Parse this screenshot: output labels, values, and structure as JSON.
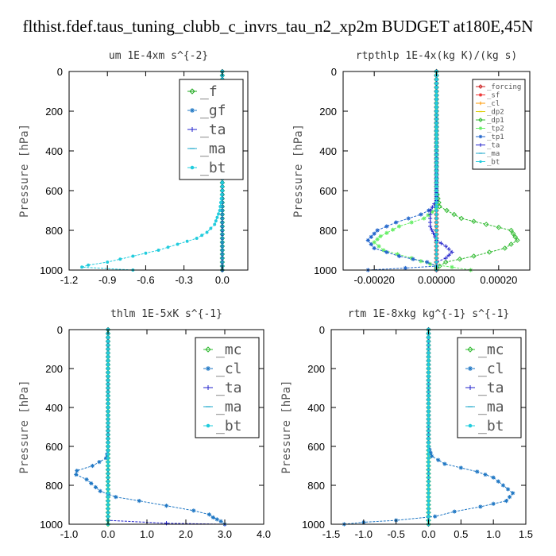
{
  "title": "flthist.fdef.taus_tuning_clubb_c_invrs_tau_n2_xp2m  BUDGET at180E,45N",
  "chart_data": [
    {
      "type": "line",
      "title": "um   1E-4xm s^{-2}",
      "ylabel": "Pressure [hPa]",
      "xlim": [
        -1.2,
        0.2
      ],
      "ylim": [
        1000,
        0
      ],
      "xticks": [
        -1.2,
        -0.9,
        -0.6,
        -0.3,
        0.0
      ],
      "xtick_labels": [
        "-1.2",
        "-0.9",
        "-0.6",
        "-0.3",
        "0.0"
      ],
      "yticks": [
        0,
        200,
        400,
        600,
        800,
        1000
      ],
      "legend_position": "top-right",
      "legend_large": true,
      "series": [
        {
          "name": "_f",
          "color": "#22aa22",
          "marker": "diamond",
          "points": [
            [
              0.0,
              0
            ],
            [
              0.0,
              1000
            ]
          ]
        },
        {
          "name": "_gf",
          "color": "#1f77c4",
          "marker": "star",
          "points": [
            [
              0.0,
              0
            ],
            [
              0.0,
              1000
            ]
          ]
        },
        {
          "name": "_ta",
          "color": "#2222cc",
          "marker": "plus",
          "points": [
            [
              0.0,
              0
            ],
            [
              0.0,
              1000
            ]
          ]
        },
        {
          "name": "_ma",
          "color": "#22aacc",
          "marker": "dash",
          "points": [
            [
              0.0,
              0
            ],
            [
              0.0,
              1000
            ]
          ]
        },
        {
          "name": "_bt",
          "color": "#22ccdd",
          "marker": "dot",
          "points": [
            [
              0.0,
              0
            ],
            [
              0.0,
              600
            ],
            [
              -0.02,
              700
            ],
            [
              -0.06,
              770
            ],
            [
              -0.12,
              810
            ],
            [
              -0.2,
              840
            ],
            [
              -0.35,
              870
            ],
            [
              -0.5,
              900
            ],
            [
              -0.7,
              930
            ],
            [
              -0.9,
              960
            ],
            [
              -1.05,
              975
            ],
            [
              -1.1,
              985
            ],
            [
              -0.7,
              1000
            ]
          ]
        }
      ]
    },
    {
      "type": "line",
      "title": "rtpthlp   1E-4x(kg K)/(kg s)",
      "ylabel": "Pressure [hPa]",
      "xlim": [
        -0.0003,
        0.0003
      ],
      "ylim": [
        1000,
        0
      ],
      "xticks": [
        -0.0002,
        0.0,
        0.0002
      ],
      "xtick_labels": [
        "-0.00020",
        "0.00000",
        "0.00020"
      ],
      "yticks": [
        0,
        200,
        400,
        600,
        800,
        1000
      ],
      "legend_position": "top-right",
      "legend_large": false,
      "series": [
        {
          "name": "_forcing",
          "color": "#cc2222",
          "marker": "diamond",
          "points": [
            [
              0.0,
              0
            ],
            [
              0.0,
              1000
            ]
          ]
        },
        {
          "name": "_sf",
          "color": "#ee3333",
          "marker": "star",
          "points": [
            [
              0.0,
              0
            ],
            [
              0.0,
              1000
            ]
          ]
        },
        {
          "name": "_cl",
          "color": "#ff9900",
          "marker": "plus",
          "points": [
            [
              0.0,
              0
            ],
            [
              0.0,
              1000
            ]
          ]
        },
        {
          "name": "_dp2",
          "color": "#ddcc00",
          "marker": "dash",
          "points": [
            [
              0.0,
              0
            ],
            [
              0.0,
              1000
            ]
          ]
        },
        {
          "name": "_dp1",
          "color": "#33bb33",
          "marker": "diamond",
          "points": [
            [
              0.0,
              0
            ],
            [
              0.0,
              600
            ],
            [
              1e-05,
              680
            ],
            [
              8e-05,
              740
            ],
            [
              0.00016,
              770
            ],
            [
              0.00024,
              800
            ],
            [
              0.00026,
              850
            ],
            [
              0.00022,
              890
            ],
            [
              0.00012,
              930
            ],
            [
              3e-05,
              960
            ],
            [
              1e-05,
              980
            ],
            [
              0.0,
              990
            ]
          ]
        },
        {
          "name": "_tp2",
          "color": "#66ee66",
          "marker": "star",
          "points": [
            [
              0.0,
              0
            ],
            [
              0.0,
              690
            ],
            [
              -4e-05,
              740
            ],
            [
              -0.00012,
              780
            ],
            [
              -0.00018,
              830
            ],
            [
              -0.0002,
              860
            ],
            [
              -0.00017,
              900
            ],
            [
              -8e-05,
              940
            ],
            [
              -2e-05,
              970
            ],
            [
              5e-05,
              985
            ],
            [
              0.00011,
              1000
            ]
          ]
        },
        {
          "name": "_tp1",
          "color": "#2266cc",
          "marker": "star",
          "points": [
            [
              0.0,
              0
            ],
            [
              0.0,
              680
            ],
            [
              -5e-05,
              720
            ],
            [
              -0.00013,
              760
            ],
            [
              -0.00019,
              800
            ],
            [
              -0.00022,
              850
            ],
            [
              -0.0002,
              890
            ],
            [
              -0.00012,
              930
            ],
            [
              -3e-05,
              960
            ],
            [
              0.0,
              980
            ],
            [
              -0.0001,
              990
            ],
            [
              -0.00022,
              1000
            ]
          ]
        },
        {
          "name": "_ta",
          "color": "#2222cc",
          "marker": "plus",
          "points": [
            [
              0.0,
              0
            ],
            [
              0.0,
              650
            ],
            [
              -2e-05,
              700
            ],
            [
              -2e-05,
              780
            ],
            [
              0.0,
              850
            ],
            [
              3e-05,
              880
            ],
            [
              5e-05,
              910
            ],
            [
              3e-05,
              940
            ],
            [
              0.0,
              960
            ],
            [
              0.0,
              1000
            ]
          ]
        },
        {
          "name": "_ma",
          "color": "#22aacc",
          "marker": "dash",
          "points": [
            [
              0.0,
              0
            ],
            [
              0.0,
              1000
            ]
          ]
        },
        {
          "name": "_bt",
          "color": "#22ccdd",
          "marker": "dot",
          "points": [
            [
              0.0,
              0
            ],
            [
              0.0,
              1000
            ]
          ]
        }
      ]
    },
    {
      "type": "line",
      "title": "thlm   1E-5xK s^{-1}",
      "ylabel": "Pressure [hPa]",
      "xlim": [
        -1.0,
        4.0
      ],
      "ylim": [
        1000,
        0
      ],
      "xticks": [
        -1.0,
        0.0,
        1.0,
        2.0,
        3.0,
        4.0
      ],
      "xtick_labels": [
        "-1.0",
        "0.0",
        "1.0",
        "2.0",
        "3.0",
        "4.0"
      ],
      "yticks": [
        0,
        200,
        400,
        600,
        800,
        1000
      ],
      "legend_position": "top-right",
      "legend_large": true,
      "series": [
        {
          "name": "_mc",
          "color": "#33bb33",
          "marker": "diamond",
          "points": [
            [
              0.0,
              0
            ],
            [
              0.0,
              1000
            ]
          ]
        },
        {
          "name": "_cl",
          "color": "#1f77c4",
          "marker": "star",
          "points": [
            [
              0.0,
              0
            ],
            [
              0.0,
              620
            ],
            [
              -0.05,
              660
            ],
            [
              -0.4,
              700
            ],
            [
              -0.8,
              725
            ],
            [
              -0.82,
              745
            ],
            [
              -0.55,
              770
            ],
            [
              -0.2,
              830
            ],
            [
              0.2,
              860
            ],
            [
              0.8,
              880
            ],
            [
              1.5,
              905
            ],
            [
              2.2,
              930
            ],
            [
              2.6,
              950
            ],
            [
              2.7,
              965
            ],
            [
              2.8,
              975
            ],
            [
              2.9,
              985
            ],
            [
              3.0,
              1000
            ]
          ]
        },
        {
          "name": "_ta",
          "color": "#2222cc",
          "marker": "plus",
          "points": [
            [
              0.0,
              0
            ],
            [
              0.0,
              980
            ],
            [
              1.5,
              995
            ],
            [
              3.0,
              1000
            ]
          ]
        },
        {
          "name": "_ma",
          "color": "#22aacc",
          "marker": "dash",
          "points": [
            [
              0.0,
              0
            ],
            [
              0.0,
              1000
            ]
          ]
        },
        {
          "name": "_bt",
          "color": "#22ccdd",
          "marker": "dot",
          "points": [
            [
              0.0,
              0
            ],
            [
              0.0,
              1000
            ]
          ]
        }
      ]
    },
    {
      "type": "line",
      "title": "rtm   1E-8xkg kg^{-1} s^{-1}",
      "ylabel": "Pressure [hPa]",
      "xlim": [
        -1.5,
        1.5
      ],
      "ylim": [
        1000,
        0
      ],
      "xticks": [
        -1.5,
        -1.0,
        -0.5,
        0.0,
        0.5,
        1.0,
        1.5
      ],
      "xtick_labels": [
        "-1.5",
        "-1.0",
        "-0.5",
        "0.0",
        "0.5",
        "1.0",
        "1.5"
      ],
      "yticks": [
        0,
        200,
        400,
        600,
        800,
        1000
      ],
      "legend_position": "top-right",
      "legend_large": true,
      "series": [
        {
          "name": "_mc",
          "color": "#33bb33",
          "marker": "diamond",
          "points": [
            [
              0.0,
              0
            ],
            [
              0.0,
              1000
            ]
          ]
        },
        {
          "name": "_cl",
          "color": "#1f77c4",
          "marker": "star",
          "points": [
            [
              0.0,
              0
            ],
            [
              0.0,
              600
            ],
            [
              0.05,
              650
            ],
            [
              0.25,
              690
            ],
            [
              0.5,
              710
            ],
            [
              0.75,
              730
            ],
            [
              1.0,
              760
            ],
            [
              1.15,
              800
            ],
            [
              1.3,
              840
            ],
            [
              1.2,
              880
            ],
            [
              0.8,
              910
            ],
            [
              0.4,
              935
            ],
            [
              0.1,
              960
            ],
            [
              -0.5,
              980
            ],
            [
              -1.0,
              990
            ],
            [
              -1.3,
              1000
            ]
          ]
        },
        {
          "name": "_ta",
          "color": "#2222cc",
          "marker": "plus",
          "points": [
            [
              0.0,
              0
            ],
            [
              0.0,
              1000
            ]
          ]
        },
        {
          "name": "_ma",
          "color": "#22aacc",
          "marker": "dash",
          "points": [
            [
              0.0,
              0
            ],
            [
              0.0,
              1000
            ]
          ]
        },
        {
          "name": "_bt",
          "color": "#22ccdd",
          "marker": "dot",
          "points": [
            [
              0.0,
              0
            ],
            [
              0.0,
              1000
            ]
          ]
        }
      ]
    }
  ]
}
